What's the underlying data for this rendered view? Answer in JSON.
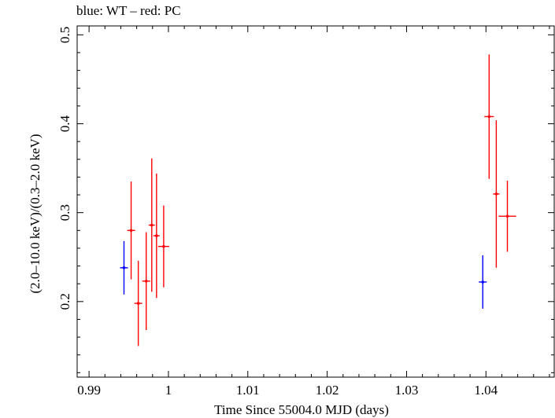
{
  "chart_data": {
    "type": "scatter",
    "title": "blue: WT – red: PC",
    "xlabel": "Time Since 55004.0 MJD (days)",
    "ylabel": "(2.0–10.0 keV)/(0.3–2.0 keV)",
    "xlim": [
      0.9885,
      1.0486
    ],
    "ylim": [
      0.115,
      0.51
    ],
    "x_ticks": [
      0.99,
      1.0,
      1.01,
      1.02,
      1.03,
      1.04
    ],
    "x_tick_labels": [
      "0.99",
      "1",
      "1.01",
      "1.02",
      "1.03",
      "1.04"
    ],
    "y_ticks": [
      0.2,
      0.3,
      0.4,
      0.5
    ],
    "y_tick_labels": [
      "0.2",
      "0.3",
      "0.4",
      "0.5"
    ],
    "grid": false,
    "series": [
      {
        "name": "WT",
        "color": "#0000ff",
        "points": [
          {
            "x": 0.9944,
            "y": 0.238,
            "xerr": 0.0005,
            "yerr": 0.03
          },
          {
            "x": 1.0396,
            "y": 0.222,
            "xerr": 0.0005,
            "yerr": 0.03
          }
        ]
      },
      {
        "name": "PC",
        "color": "#ff0000",
        "points": [
          {
            "x": 0.9953,
            "y": 0.28,
            "xerr": 0.0005,
            "yerr": 0.055
          },
          {
            "x": 0.9962,
            "y": 0.198,
            "xerr": 0.0005,
            "yerr": 0.048
          },
          {
            "x": 0.9972,
            "y": 0.223,
            "xerr": 0.0005,
            "yerr": 0.055
          },
          {
            "x": 0.9979,
            "y": 0.286,
            "xerr": 0.0004,
            "yerr": 0.075
          },
          {
            "x": 0.9985,
            "y": 0.274,
            "xerr": 0.0004,
            "yerr": 0.07
          },
          {
            "x": 0.9994,
            "y": 0.262,
            "xerr": 0.0007,
            "yerr": 0.046
          },
          {
            "x": 1.0404,
            "y": 0.408,
            "xerr": 0.0006,
            "yerr": 0.07
          },
          {
            "x": 1.0413,
            "y": 0.321,
            "xerr": 0.0004,
            "yerr": 0.083
          },
          {
            "x": 1.0427,
            "y": 0.296,
            "xerr": 0.0011,
            "yerr": 0.04
          }
        ]
      }
    ]
  }
}
